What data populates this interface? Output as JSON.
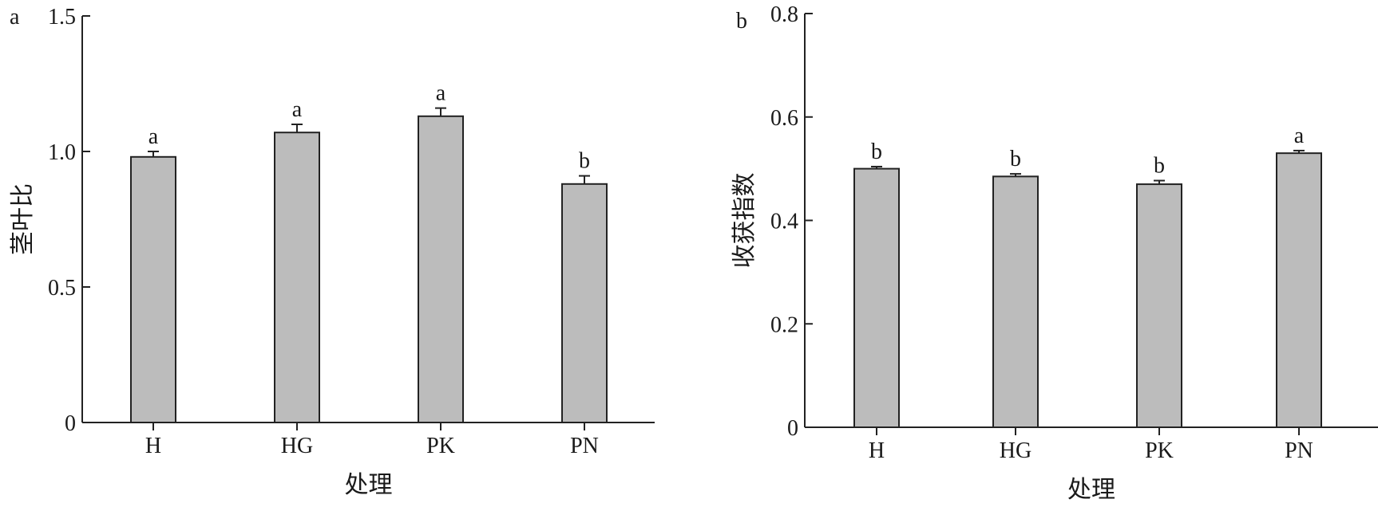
{
  "chart_data": [
    {
      "panel_label": "a",
      "type": "bar",
      "categories": [
        "H",
        "HG",
        "PK",
        "PN"
      ],
      "values": [
        0.98,
        1.07,
        1.13,
        0.88
      ],
      "errors": [
        0.02,
        0.03,
        0.03,
        0.03
      ],
      "significance": [
        "a",
        "a",
        "a",
        "b"
      ],
      "xlabel": "处理",
      "ylabel": "茎叶比",
      "ylim": [
        0,
        1.5
      ],
      "yticks": [
        0,
        0.5,
        1.0,
        1.5
      ],
      "ytick_labels": [
        "0",
        "0.5",
        "1.0",
        "1.5"
      ],
      "grid": false,
      "bar_color": "#bcbcbc"
    },
    {
      "panel_label": "b",
      "type": "bar",
      "categories": [
        "H",
        "HG",
        "PK",
        "PN"
      ],
      "values": [
        0.5,
        0.485,
        0.47,
        0.53
      ],
      "errors": [
        0.004,
        0.005,
        0.007,
        0.005
      ],
      "significance": [
        "b",
        "b",
        "b",
        "a"
      ],
      "xlabel": "处理",
      "ylabel": "收获指数",
      "ylim": [
        0,
        0.8
      ],
      "yticks": [
        0,
        0.2,
        0.4,
        0.6,
        0.8
      ],
      "ytick_labels": [
        "0",
        "0.2",
        "0.4",
        "0.6",
        "0.8"
      ],
      "grid": false,
      "bar_color": "#bcbcbc"
    }
  ]
}
